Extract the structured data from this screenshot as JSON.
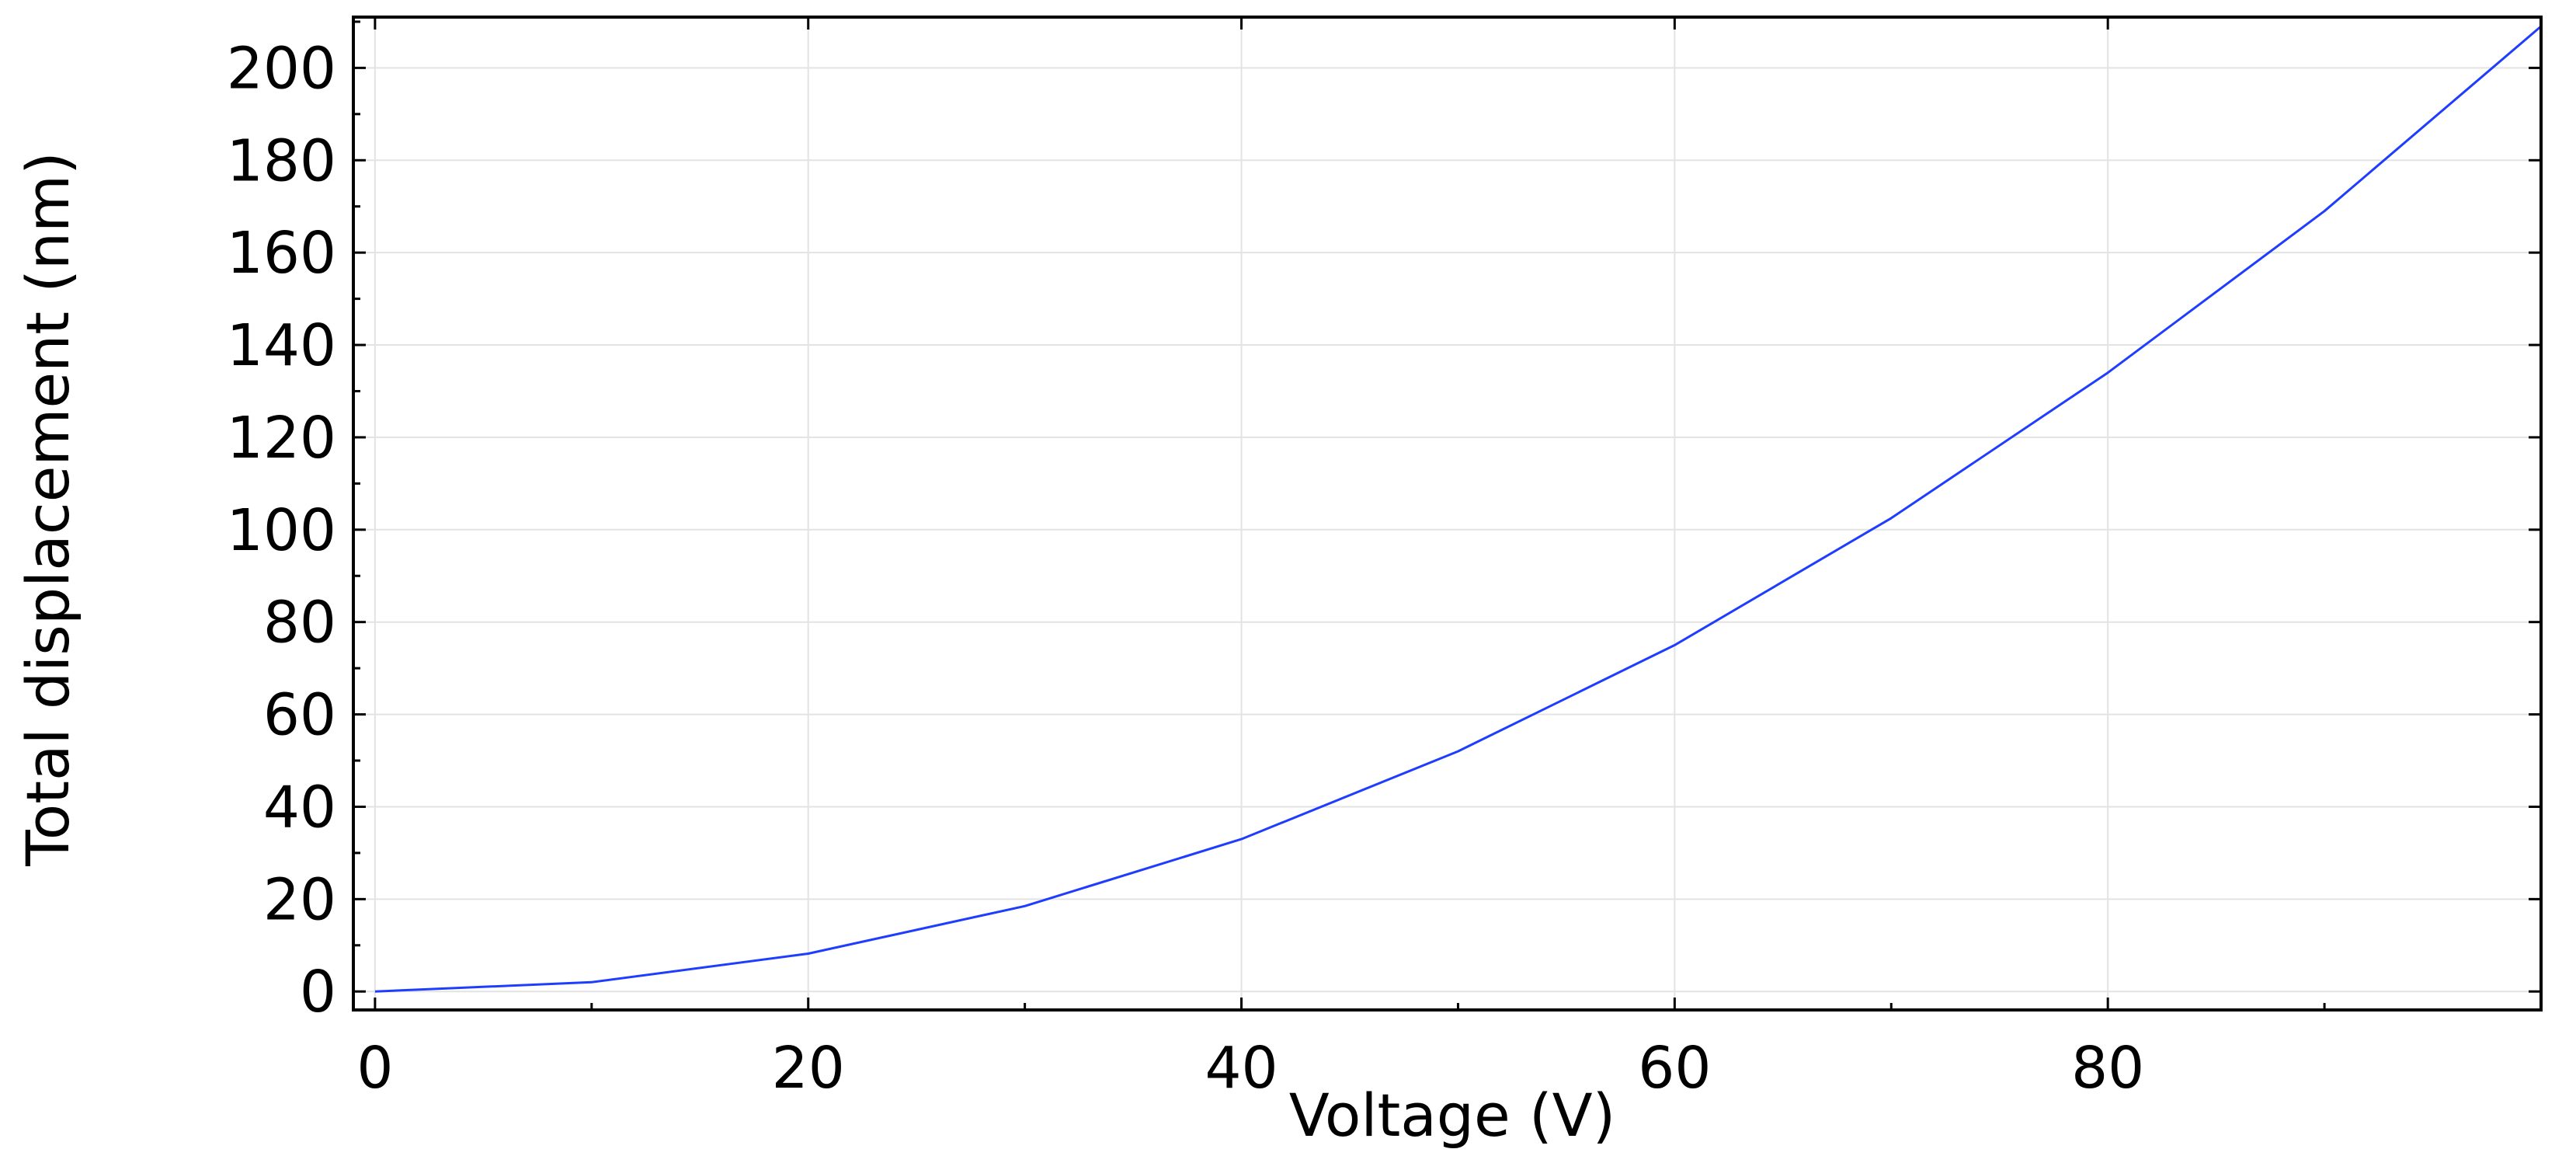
{
  "chart_data": {
    "type": "line",
    "title": "",
    "xlabel": "Voltage (V)",
    "ylabel": "Total displacement (nm)",
    "xlim": [
      -1,
      100
    ],
    "ylim": [
      -4,
      211
    ],
    "xticks": [
      0,
      20,
      40,
      60,
      80
    ],
    "yticks": [
      0,
      20,
      40,
      60,
      80,
      100,
      120,
      140,
      160,
      180,
      200
    ],
    "grid": true,
    "legend": "none",
    "series": [
      {
        "color": "#1f3dff",
        "x": [
          0,
          10,
          20,
          30,
          40,
          50,
          60,
          70,
          80,
          90,
          100
        ],
        "y": [
          0,
          2,
          8.2,
          18.5,
          33,
          52,
          75,
          102.5,
          134,
          169,
          209
        ]
      }
    ]
  }
}
